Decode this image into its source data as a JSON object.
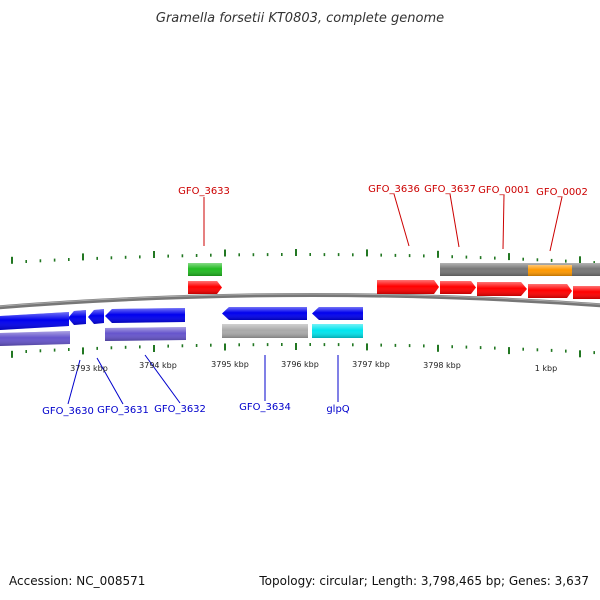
{
  "title": "Gramella forsetii KT0803, complete genome",
  "footer": {
    "accession": "Accession: NC_008571",
    "stats": "Topology: circular; Length: 3,798,465 bp; Genes: 3,637"
  },
  "colors": {
    "forward_label": "#cc0000",
    "reverse_label": "#0000cc",
    "forward_cds": "#ff0000",
    "reverse_cds": "#0000ee",
    "trna": "#22bb22",
    "gene_grey": "#777777",
    "gene_reverse_purple": "#6655cc",
    "glpq_gene": "#00e5ee",
    "orange_feature": "#ff9900",
    "backbone": "#777777",
    "ticks": "#227722"
  },
  "ticks": {
    "labels": [
      "3793 kbp",
      "3794 kbp",
      "3795 kbp",
      "3796 kbp",
      "3797 kbp",
      "3798 kbp",
      "1 kbp"
    ]
  },
  "forward_labels": [
    "GFO_3633",
    "GFO_3636",
    "GFO_3637",
    "GFO_0001",
    "GFO_0002"
  ],
  "reverse_labels": [
    "GFO_3630",
    "GFO_3631",
    "GFO_3632",
    "GFO_3634",
    "glpQ"
  ]
}
